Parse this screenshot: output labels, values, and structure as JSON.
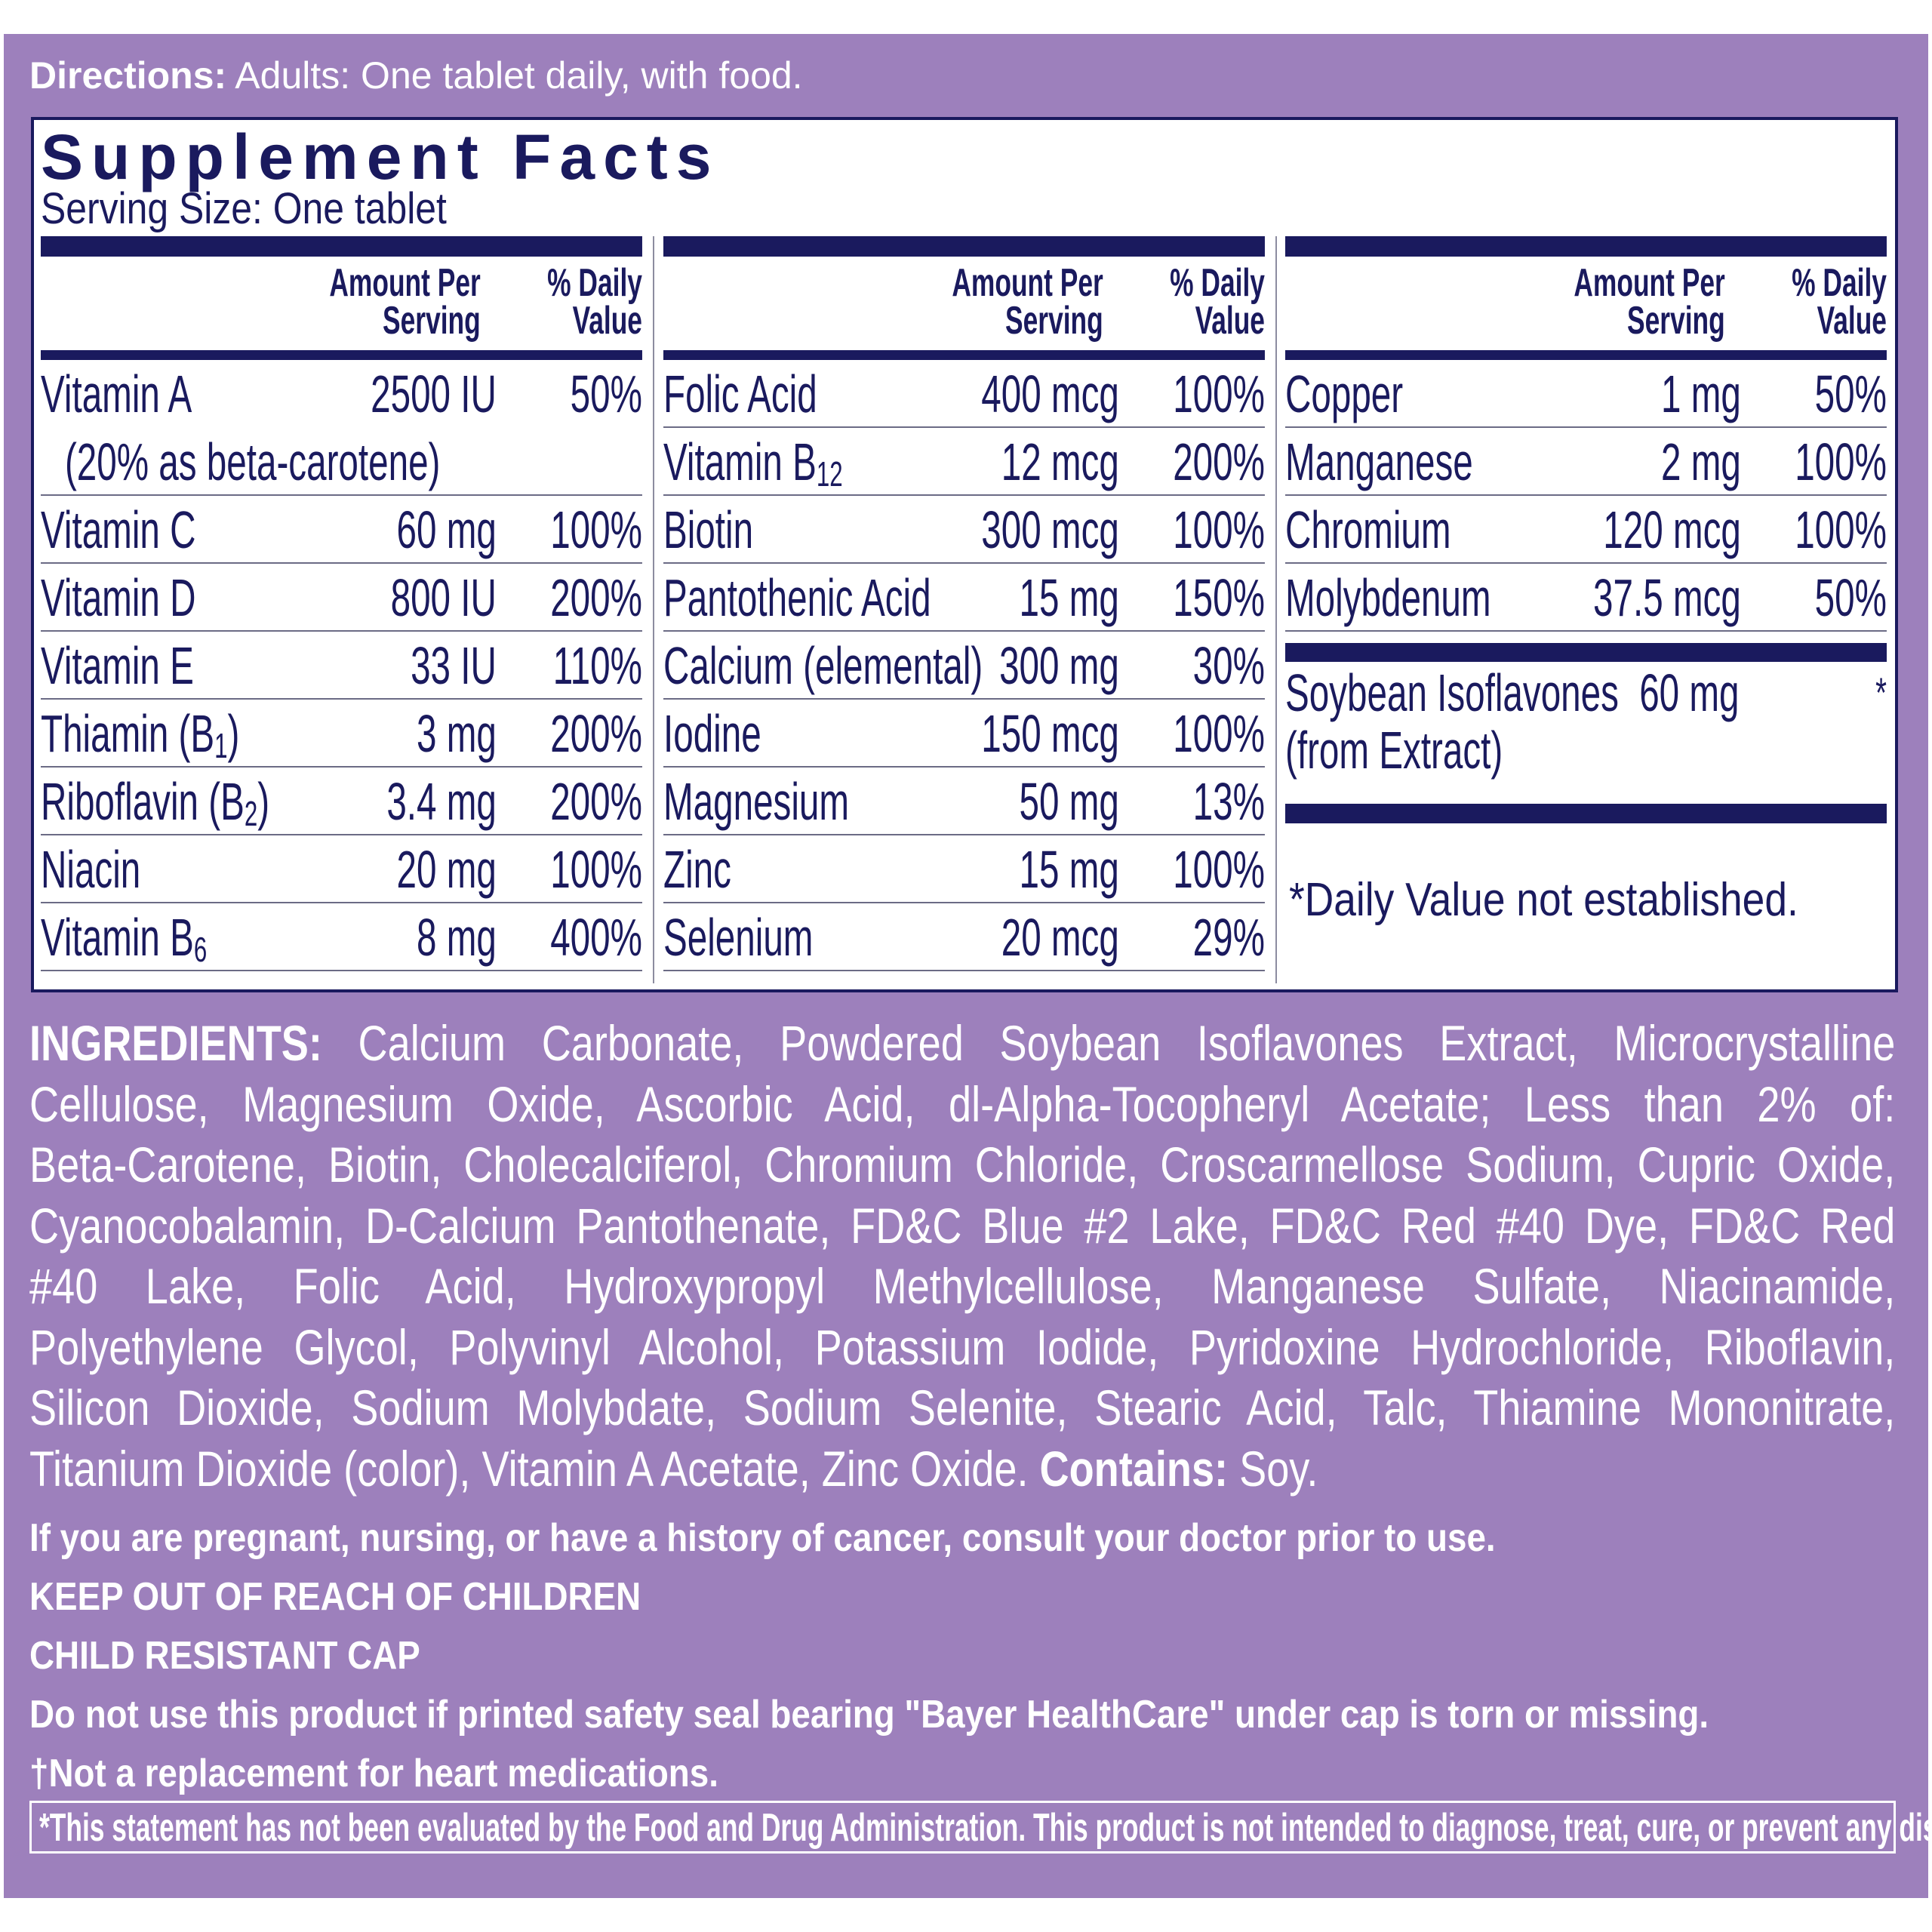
{
  "directions": {
    "label": "Directions:",
    "text": " Adults: One tablet daily, with food."
  },
  "facts": {
    "title": "Supplement Facts",
    "serving_size": "Serving Size: One tablet",
    "header": {
      "amount": "Amount Per Serving",
      "daily_value": "% Daily Value"
    },
    "columns": [
      [
        {
          "name": "Vitamin A",
          "amount": "2500 IU",
          "dv": "50%",
          "note": "(20% as beta-carotene)"
        },
        {
          "name": "Vitamin C",
          "amount": "60 mg",
          "dv": "100%"
        },
        {
          "name": "Vitamin D",
          "amount": "800 IU",
          "dv": "200%"
        },
        {
          "name": "Vitamin E",
          "amount": "33 IU",
          "dv": "110%"
        },
        {
          "name": "Thiamin (B",
          "sub": "1",
          "suffix": ")",
          "amount": "3 mg",
          "dv": "200%"
        },
        {
          "name": "Riboflavin (B",
          "sub": "2",
          "suffix": ")",
          "amount": "3.4 mg",
          "dv": "200%"
        },
        {
          "name": "Niacin",
          "amount": "20 mg",
          "dv": "100%"
        },
        {
          "name": "Vitamin B",
          "sub": "6",
          "amount": "8 mg",
          "dv": "400%"
        }
      ],
      [
        {
          "name": "Folic Acid",
          "amount": "400 mcg",
          "dv": "100%"
        },
        {
          "name": "Vitamin B",
          "sub": "12",
          "amount": "12 mcg",
          "dv": "200%"
        },
        {
          "name": "Biotin",
          "amount": "300 mcg",
          "dv": "100%"
        },
        {
          "name": "Pantothenic Acid",
          "amount": "15 mg",
          "dv": "150%"
        },
        {
          "name": "Calcium (elemental)",
          "amount": "300 mg",
          "dv": "30%"
        },
        {
          "name": "Iodine",
          "amount": "150 mcg",
          "dv": "100%"
        },
        {
          "name": "Magnesium",
          "amount": "50 mg",
          "dv": "13%"
        },
        {
          "name": "Zinc",
          "amount": "15 mg",
          "dv": "100%"
        },
        {
          "name": "Selenium",
          "amount": "20 mcg",
          "dv": "29%"
        }
      ],
      [
        {
          "name": "Copper",
          "amount": "1 mg",
          "dv": "50%"
        },
        {
          "name": "Manganese",
          "amount": "2 mg",
          "dv": "100%"
        },
        {
          "name": "Chromium",
          "amount": "120 mcg",
          "dv": "100%"
        },
        {
          "name": "Molybdenum",
          "amount": "37.5 mcg",
          "dv": "50%"
        }
      ]
    ],
    "soy": {
      "name": "Soybean Isoflavones",
      "name2": "(from Extract)",
      "amount": "60 mg",
      "dv": "*"
    },
    "footnote": "*Daily Value not established."
  },
  "ingredients": {
    "label": "INGREDIENTS:",
    "lines": [
      " Calcium Carbonate, Powdered Soybean Isoflavones Extract, Microcrystalline",
      "Cellulose, Magnesium Oxide, Ascorbic Acid, dl-Alpha-Tocopheryl Acetate; Less than 2% of:",
      "Beta-Carotene, Biotin, Cholecalciferol, Chromium Chloride, Croscarmellose Sodium, Cupric Oxide,",
      "Cyanocobalamin, D-Calcium Pantothenate, FD&C Blue #2 Lake, FD&C Red #40 Dye, FD&C Red",
      "#40 Lake, Folic Acid, Hydroxypropyl Methylcellulose, Manganese Sulfate, Niacinamide,",
      "Polyethylene Glycol, Polyvinyl Alcohol, Potassium Iodide, Pyridoxine Hydrochloride, Riboflavin,",
      "Silicon Dioxide, Sodium Molybdate, Sodium Selenite, Stearic Acid, Talc, Thiamine Mononitrate,",
      "Titanium Dioxide (color), Vitamin A Acetate, Zinc Oxide. "
    ],
    "contains_label": "Contains:",
    "contains_value": " Soy."
  },
  "warnings": [
    "If you are pregnant, nursing, or have a history of cancer, consult your doctor prior to use.",
    "KEEP OUT OF REACH OF CHILDREN",
    "CHILD RESISTANT CAP",
    "Do not use this product if printed safety seal bearing \"Bayer HealthCare\" under cap is torn or missing.",
    "†Not a replacement for heart medications."
  ],
  "fda_statement": "*This statement has not been evaluated by the Food and Drug Administration. This product is not intended to diagnose, treat, cure, or prevent any disease.",
  "colors": {
    "panel": "#9d80bc",
    "navy": "#1a1a5e"
  }
}
